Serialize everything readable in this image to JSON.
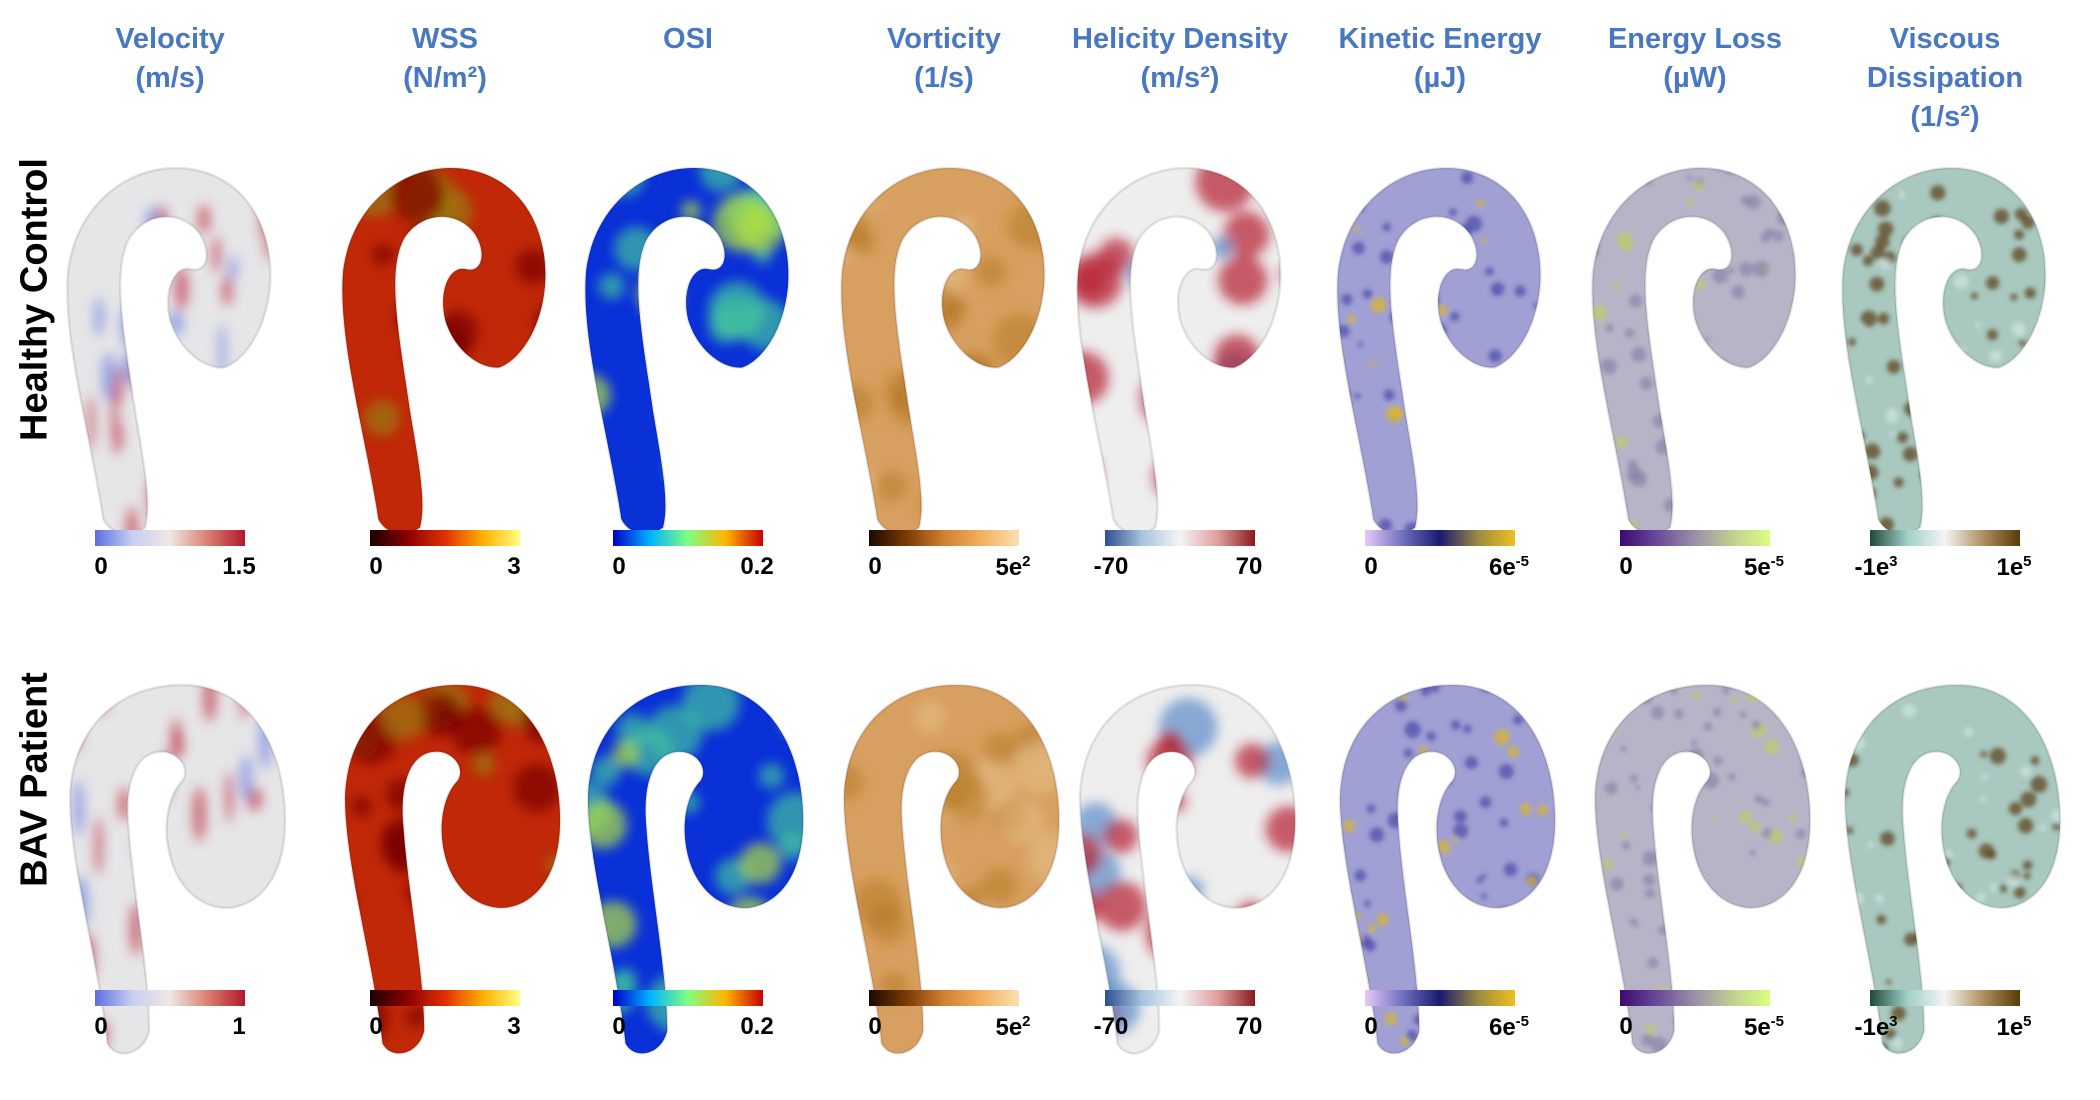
{
  "columns": [
    {
      "title": "Velocity",
      "unit": "(m/s)"
    },
    {
      "title": "WSS",
      "unit": "(N/m²)"
    },
    {
      "title": "OSI",
      "unit": ""
    },
    {
      "title": "Vorticity",
      "unit": "(1/s)"
    },
    {
      "title": "Helicity Density",
      "unit": "(m/s²)"
    },
    {
      "title": "Kinetic Energy",
      "unit": "(µJ)"
    },
    {
      "title": "Energy Loss",
      "unit": "(µW)"
    },
    {
      "title": "Viscous Dissipation",
      "unit": "(1/s²)"
    }
  ],
  "rows": [
    {
      "label": "Healthy Control",
      "colorbars": [
        {
          "min": "0",
          "max": "1.5"
        },
        {
          "min": "0",
          "max": "3"
        },
        {
          "min": "0",
          "max": "0.2"
        },
        {
          "min": "0",
          "max_base": "5e",
          "max_exp": "2"
        },
        {
          "min": "-70",
          "max": "70"
        },
        {
          "min": "0",
          "max_base": "6e",
          "max_exp": "-5"
        },
        {
          "min": "0",
          "max_base": "5e",
          "max_exp": "-5"
        },
        {
          "min_base": "-1e",
          "min_exp": "3",
          "max_base": "1e",
          "max_exp": "5"
        }
      ]
    },
    {
      "label": "BAV Patient",
      "colorbars": [
        {
          "min": "0",
          "max": "1"
        },
        {
          "min": "0",
          "max": "3"
        },
        {
          "min": "0",
          "max": "0.2"
        },
        {
          "min": "0",
          "max_base": "5e",
          "max_exp": "2"
        },
        {
          "min": "-70",
          "max": "70"
        },
        {
          "min": "0",
          "max_base": "6e",
          "max_exp": "-5"
        },
        {
          "min": "0",
          "max_base": "5e",
          "max_exp": "-5"
        },
        {
          "min_base": "-1e",
          "min_exp": "3",
          "max_base": "1e",
          "max_exp": "5"
        }
      ]
    }
  ],
  "colormaps": [
    [
      "#5b6fe0",
      "#c9cff2",
      "#f0e6e4",
      "#d98070",
      "#b2182b"
    ],
    [
      "#1a0000",
      "#8b0000",
      "#e03000",
      "#ffb000",
      "#ffff80"
    ],
    [
      "#0000c8",
      "#00b4ff",
      "#80ff80",
      "#ffb400",
      "#c80000"
    ],
    [
      "#1a0a00",
      "#7a3a05",
      "#d08030",
      "#f4b060",
      "#fbe0b0"
    ],
    [
      "#2c4f8f",
      "#a8c4e0",
      "#f4f4f4",
      "#e0a0a0",
      "#8b1a1a"
    ],
    [
      "#e8c8f8",
      "#7070c0",
      "#1a1a70",
      "#9a8a40",
      "#f0c020"
    ],
    [
      "#3a0a70",
      "#6a4a9a",
      "#9a90a8",
      "#c0d090",
      "#d8ff80"
    ],
    [
      "#1f4a3a",
      "#a0d0c8",
      "#f4f4f4",
      "#b09060",
      "#5a3a08"
    ]
  ],
  "surface_styles": [
    {
      "base": "#e6e6e8",
      "accent": "#c04050",
      "accent2": "#7a8ae0",
      "mode": "streak"
    },
    {
      "base": "#c02808",
      "accent": "#7a0000",
      "accent2": "#9a7a10",
      "mode": "blotch"
    },
    {
      "base": "#0a30d8",
      "accent": "#40c0a0",
      "accent2": "#b0e040",
      "mode": "blotch"
    },
    {
      "base": "#d8a060",
      "accent": "#b0701a",
      "accent2": "#e8c890",
      "mode": "soft"
    },
    {
      "base": "#eeeeee",
      "accent": "#b52030",
      "accent2": "#5a8ac8",
      "mode": "spots"
    },
    {
      "base": "#a0a0d4",
      "accent": "#4a4aa8",
      "accent2": "#e0b820",
      "mode": "speckle"
    },
    {
      "base": "#b8b4c8",
      "accent": "#8a82a8",
      "accent2": "#b8d060",
      "mode": "speckle"
    },
    {
      "base": "#a8c8c0",
      "accent": "#5a3a10",
      "accent2": "#cfe6e0",
      "mode": "speckle"
    }
  ]
}
